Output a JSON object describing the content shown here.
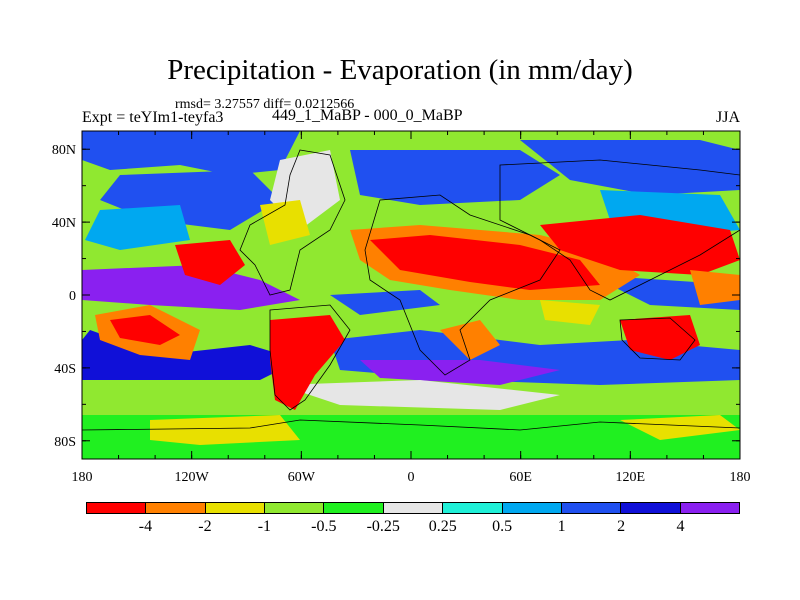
{
  "title": "Precipitation - Evaporation (in mm/day)",
  "stats": "rmsd= 3.27557 diff= 0.0212566",
  "experiment": "Expt = teYIm1-teyfa3",
  "subtitle": "449_1_MaBP - 000_0_MaBP",
  "season": "JJA",
  "lat_labels": [
    "80N",
    "40N",
    "0",
    "40S",
    "80S"
  ],
  "lon_labels": [
    "180",
    "120W",
    "60W",
    "0",
    "60E",
    "120E",
    "180"
  ],
  "colorbar": {
    "labels": [
      "-4",
      "-2",
      "-1",
      "-0.5",
      "-0.25",
      "0.25",
      "0.5",
      "1",
      "2",
      "4"
    ],
    "colors": [
      "#ff0000",
      "#ff8000",
      "#e8e000",
      "#90e830",
      "#20f020",
      "#e6e6e6",
      "#20f0d8",
      "#00a8f0",
      "#2050f0",
      "#1010d8",
      "#8a20f0"
    ]
  }
}
